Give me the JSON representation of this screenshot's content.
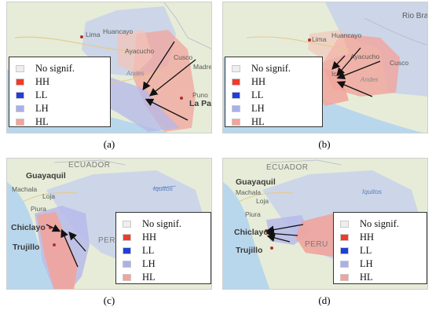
{
  "legend": {
    "items": [
      {
        "label": "No signif.",
        "color": "#eeeeee"
      },
      {
        "label": "HH",
        "color": "#f03a2a"
      },
      {
        "label": "LL",
        "color": "#1f3fd8"
      },
      {
        "label": "LH",
        "color": "#a9b0e9"
      },
      {
        "label": "HL",
        "color": "#f4a39a"
      }
    ]
  },
  "panels": [
    {
      "caption": "(a)",
      "labels": {
        "lima": "Lima",
        "huancayo": "Huancayo",
        "ayacucho": "Ayacucho",
        "cusco": "Cusco",
        "madre": "Madre",
        "andes": "Andes",
        "puno": "Puno",
        "lapaz": "La Paz"
      }
    },
    {
      "caption": "(b)",
      "labels": {
        "rio": "Rio Bran",
        "lima": "Lima",
        "huancayo": "Huancayo",
        "ayacucho": "Ayacucho",
        "cusco": "Cusco",
        "ica": "Ica",
        "andes": "Andes"
      }
    },
    {
      "caption": "(c)",
      "labels": {
        "guayaquil": "Guayaquil",
        "ecuador": "ECUADOR",
        "machala": "Machala",
        "loja": "Loja",
        "piura": "Piura",
        "iquitos": "Iquitos",
        "chiclayo": "Chiclayo",
        "trujillo": "Trujillo",
        "peru": "PERU"
      }
    },
    {
      "caption": "(d)",
      "labels": {
        "ecuador": "ECUADOR",
        "guayaquil": "Guayaquil",
        "machala": "Machala",
        "loja": "Loja",
        "piura": "Piura",
        "iquitos": "Iquitos",
        "chiclayo": "Chiclayo",
        "trujillo": "Trujillo",
        "peru": "PERU"
      }
    }
  ]
}
